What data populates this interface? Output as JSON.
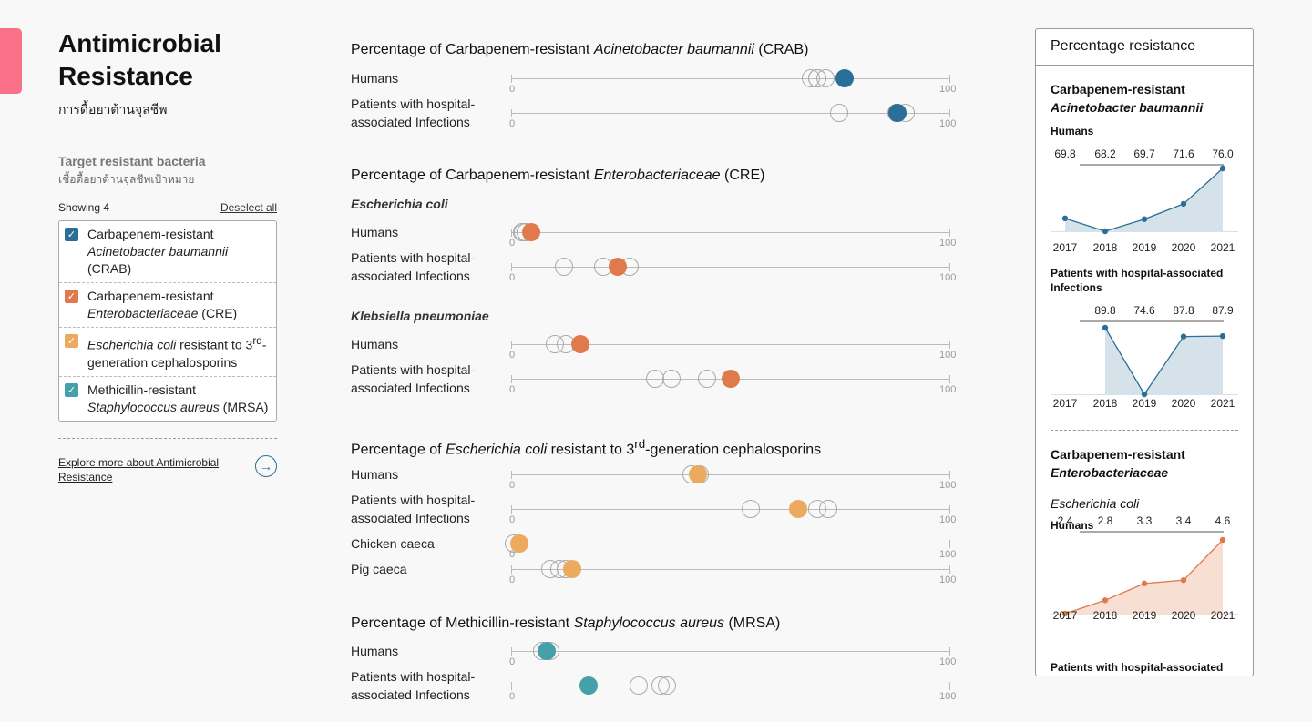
{
  "sidebar": {
    "title_line1": "Antimicrobial",
    "title_line2": "Resistance",
    "subtitle": "การดื้อยาต้านจุลชีพ",
    "section_title": "Target resistant bacteria",
    "section_sub": "เชื้อดื้อยาต้านจุลชีพเป้าหมาย",
    "showing": "Showing 4",
    "deselect": "Deselect all",
    "items": [
      {
        "line1": "Carbapenem-resistant",
        "italic": "Acinetobacter baumannii",
        "rest": "",
        "line3": "(CRAB)",
        "color": "#2a6f97"
      },
      {
        "line1": "Carbapenem-resistant",
        "italic": "Enterobacteriaceae",
        "rest": " (CRE)",
        "line3": "",
        "color": "#e07a4d"
      },
      {
        "italic1": "Escherichia coli",
        "rest1": " resistant to 3",
        "sup": "rd",
        "rest1b": "-",
        "line2": "generation cephalosporins",
        "color": "#ebaa5e"
      },
      {
        "line1": "Methicillin-resistant",
        "italic": "Staphylococcus aureus",
        "rest": " (MRSA)",
        "line3": "",
        "color": "#45a0aa"
      }
    ],
    "explore": "Explore more about Antimicrobial Resistance",
    "arrow_icon": "→"
  },
  "main": {
    "axis_min": "0",
    "axis_max": "100",
    "groups": [
      {
        "title_pre": "Percentage of Carbapenem-resistant ",
        "title_italic": "Acinetobacter baumannii",
        "title_post": " (CRAB)",
        "color": "#2a6f97",
        "rows": [
          {
            "label": "Humans",
            "current": 76.0,
            "history": [
              68.2,
              69.7,
              69.8,
              71.6
            ]
          },
          {
            "label": "Patients with hospital-associated Infections",
            "current": 87.9,
            "history": [
              74.6,
              87.8,
              89.8
            ]
          }
        ]
      },
      {
        "title_pre": "Percentage of Carbapenem-resistant ",
        "title_italic": "Enterobacteriaceae",
        "title_post": " (CRE)",
        "color": "#e07a4d",
        "subgroups": [
          {
            "name": "Escherichia coli",
            "rows": [
              {
                "label": "Humans",
                "current": 4.6,
                "history": [
                  2.4,
                  2.8,
                  3.3,
                  3.4
                ]
              },
              {
                "label": "Patients with hospital-associated Infections",
                "current": 24.3,
                "history": [
                  12.0,
                  21.0,
                  27.0
                ]
              }
            ]
          },
          {
            "name": "Klebsiella pneumoniae",
            "rows": [
              {
                "label": "Humans",
                "current": 15.8,
                "history": [
                  10.0,
                  12.5
                ]
              },
              {
                "label": "Patients with hospital-associated Infections",
                "current": 49.9,
                "history": [
                  32.7,
                  36.5,
                  44.7
                ]
              }
            ]
          }
        ]
      },
      {
        "title_pre": "Percentage of ",
        "title_italic": "Escherichia coli",
        "title_post": " resistant to 3",
        "title_sup": "rd",
        "title_post2": "-generation cephalosporins",
        "color": "#ebaa5e",
        "rows": [
          {
            "label": "Humans",
            "current": 42.5,
            "history": [
              41.0,
              43.0
            ]
          },
          {
            "label": "Patients with hospital-associated Infections",
            "current": 65.4,
            "history": [
              54.6,
              69.7,
              72.2
            ]
          },
          {
            "label": "Chicken caeca",
            "current": 1.8,
            "history": [
              0.6
            ]
          },
          {
            "label": "Pig caeca",
            "current": 14.0,
            "history": [
              9.0,
              11.0,
              12.5
            ]
          }
        ]
      },
      {
        "title_pre": "Percentage of Methicillin-resistant ",
        "title_italic": "Staphylococcus aureus",
        "title_post": " (MRSA)",
        "color": "#45a0aa",
        "rows": [
          {
            "label": "Humans",
            "current": 8.1,
            "history": [
              7.0,
              9.0
            ]
          },
          {
            "label": "Patients with hospital-associated Infections",
            "current": 17.6,
            "history": [
              29.0,
              34.0,
              35.5
            ]
          }
        ]
      }
    ]
  },
  "panel": {
    "header": "Percentage resistance",
    "crab_org_line1": "Carbapenem-resistant",
    "crab_org_line2": "Acinetobacter baumannii",
    "cre_org_line1": "Carbapenem-resistant",
    "cre_org_line2": "Enterobacteriaceae",
    "cre_sub": "Escherichia coli",
    "humans": "Humans",
    "hai_label_line1": "Patients with hospital-associated",
    "hai_label_line2": "Infections",
    "hai_cut": "Patients with hospital-associated",
    "years": [
      "2017",
      "2018",
      "2019",
      "2020",
      "2021"
    ],
    "charts": [
      {
        "id": "crab_h",
        "color": "#2a6f97",
        "fill": "#d6e2ea",
        "values": [
          69.8,
          68.2,
          69.7,
          71.6,
          76.0
        ],
        "labels": [
          "69.8",
          "68.2",
          "69.7",
          "71.6",
          "76.0"
        ]
      },
      {
        "id": "crab_hai",
        "color": "#2a6f97",
        "fill": "#d6e2ea",
        "values": [
          null,
          89.8,
          74.6,
          87.8,
          87.9
        ],
        "labels": [
          "",
          "89.8",
          "74.6",
          "87.8",
          "87.9"
        ]
      },
      {
        "id": "cre_h",
        "color": "#e07a4d",
        "fill": "#f7dfd3",
        "values": [
          2.4,
          2.8,
          3.3,
          3.4,
          4.6
        ],
        "labels": [
          "2.4",
          "2.8",
          "3.3",
          "3.4",
          "4.6"
        ]
      }
    ]
  }
}
